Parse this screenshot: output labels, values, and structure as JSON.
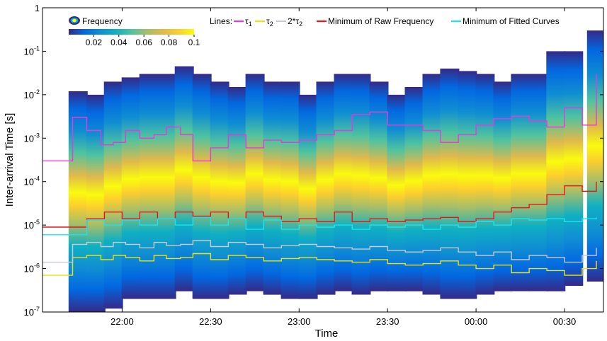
{
  "chart_data": {
    "type": "heatmap",
    "title": "",
    "xlabel": "Time",
    "ylabel": "Inter-arrival Time [s]",
    "x_ticks": [
      "22:00",
      "22:30",
      "23:00",
      "23:30",
      "00:00",
      "00:30"
    ],
    "x_tick_hours": [
      22.0,
      22.5,
      23.0,
      23.5,
      24.0,
      24.5
    ],
    "xlim_hours": [
      21.55,
      24.72
    ],
    "y_scale": "log",
    "ylim": [
      1e-07,
      1
    ],
    "y_ticks": [
      {
        "value": 1,
        "base": "1",
        "exp": ""
      },
      {
        "value": 0.1,
        "base": "10",
        "exp": "-1"
      },
      {
        "value": 0.01,
        "base": "10",
        "exp": "-2"
      },
      {
        "value": 0.001,
        "base": "10",
        "exp": "-3"
      },
      {
        "value": 0.0001,
        "base": "10",
        "exp": "-4"
      },
      {
        "value": 1e-05,
        "base": "10",
        "exp": "-5"
      },
      {
        "value": 1e-06,
        "base": "10",
        "exp": "-6"
      },
      {
        "value": 1e-07,
        "base": "10",
        "exp": "-7"
      }
    ],
    "colorbar": {
      "label": "Frequency",
      "range": [
        0,
        0.1
      ],
      "ticks": [
        "0.02",
        "0.04",
        "0.06",
        "0.08",
        "0.1"
      ],
      "tick_values": [
        0.02,
        0.04,
        0.06,
        0.08,
        0.1
      ],
      "colormap": [
        "#352a87",
        "#0268e1",
        "#108ed2",
        "#0fb0c2",
        "#4fc3a0",
        "#a5be6a",
        "#e0b94b",
        "#fcce2e",
        "#f9fb0e"
      ]
    },
    "legend": {
      "prefix": "Lines:",
      "position": "top-right",
      "entries": [
        {
          "name": "τ1",
          "color": "#e63ad9"
        },
        {
          "name": "τ2",
          "color": "#e8e414"
        },
        {
          "name": "2*τ2",
          "color": "#c8c8d0"
        },
        {
          "name": "Minimum of Raw Frequency",
          "color": "#e8161b"
        },
        {
          "name": "Minimum of Fitted Curves",
          "color": "#1ee3ee"
        }
      ]
    },
    "density_envelope": {
      "x_hours": [
        21.75,
        21.85,
        21.95,
        22.05,
        22.15,
        22.25,
        22.35,
        22.45,
        22.55,
        22.65,
        22.75,
        22.85,
        22.95,
        23.05,
        23.15,
        23.25,
        23.35,
        23.45,
        23.55,
        23.65,
        23.75,
        23.85,
        23.95,
        24.05,
        24.15,
        24.25,
        24.35,
        24.45,
        24.55,
        24.68
      ],
      "upper_s": [
        0.012,
        0.01,
        0.02,
        0.025,
        0.03,
        0.03,
        0.045,
        0.03,
        0.02,
        0.015,
        0.03,
        0.02,
        0.02,
        0.01,
        0.02,
        0.03,
        0.03,
        0.02,
        0.01,
        0.015,
        0.03,
        0.04,
        0.035,
        0.03,
        0.02,
        0.03,
        0.03,
        0.1,
        0.1,
        0.3
      ],
      "lower_s": [
        1e-07,
        1e-07,
        1.2e-07,
        2e-07,
        2e-07,
        2e-07,
        3e-07,
        2e-07,
        2e-07,
        2.5e-07,
        3e-07,
        2.5e-07,
        2e-07,
        2e-07,
        2.5e-07,
        3e-07,
        2.5e-07,
        3e-07,
        3e-07,
        3e-07,
        2.5e-07,
        2e-07,
        2e-07,
        2.5e-07,
        3e-07,
        3e-07,
        3e-07,
        3e-07,
        4e-07,
        5e-07
      ]
    },
    "series": [
      {
        "name": "τ1",
        "color": "#e63ad9",
        "style": "step",
        "x_hours": [
          21.55,
          21.62,
          21.72,
          21.8,
          21.88,
          21.95,
          22.02,
          22.1,
          22.18,
          22.25,
          22.33,
          22.4,
          22.5,
          22.6,
          22.7,
          22.8,
          22.9,
          23.0,
          23.1,
          23.2,
          23.3,
          23.4,
          23.5,
          23.6,
          23.7,
          23.8,
          23.9,
          24.0,
          24.1,
          24.2,
          24.3,
          24.4,
          24.5,
          24.6,
          24.68
        ],
        "y_s": [
          0.0003,
          0.0003,
          0.003,
          0.0015,
          0.0007,
          0.0008,
          0.0015,
          0.001,
          0.0012,
          0.0018,
          0.0012,
          0.0003,
          0.0006,
          0.0012,
          0.0006,
          0.0009,
          0.0008,
          0.0009,
          0.0012,
          0.0015,
          0.0035,
          0.004,
          0.002,
          0.002,
          0.0015,
          0.0008,
          0.0012,
          0.002,
          0.0028,
          0.0032,
          0.0025,
          0.0018,
          0.005,
          0.002,
          0.03
        ]
      },
      {
        "name": "τ2",
        "color": "#e8e414",
        "style": "step",
        "x_hours": [
          21.55,
          21.62,
          21.72,
          21.8,
          21.88,
          21.95,
          22.02,
          22.1,
          22.18,
          22.25,
          22.33,
          22.4,
          22.5,
          22.6,
          22.7,
          22.8,
          22.9,
          23.0,
          23.1,
          23.2,
          23.3,
          23.4,
          23.5,
          23.6,
          23.7,
          23.8,
          23.9,
          24.0,
          24.1,
          24.2,
          24.3,
          24.4,
          24.5,
          24.6,
          24.68
        ],
        "y_s": [
          7e-07,
          7e-07,
          1.8e-06,
          2e-06,
          1.6e-06,
          2e-06,
          1.8e-06,
          1.5e-06,
          2e-06,
          1.7e-06,
          1.8e-06,
          2.2e-06,
          1.6e-06,
          2e-06,
          1.8e-06,
          1.5e-06,
          1.7e-06,
          1.8e-06,
          1.6e-06,
          1.5e-06,
          1.4e-06,
          1.6e-06,
          1.3e-06,
          1.2e-06,
          1.3e-06,
          1.5e-06,
          1.2e-06,
          1e-06,
          1.2e-06,
          8e-07,
          1e-06,
          9e-07,
          7e-07,
          1e-06,
          1.5e-06
        ]
      },
      {
        "name": "2*τ2",
        "color": "#c8c8d0",
        "style": "step",
        "x_hours": [
          21.55,
          21.62,
          21.72,
          21.8,
          21.88,
          21.95,
          22.02,
          22.1,
          22.18,
          22.25,
          22.33,
          22.4,
          22.5,
          22.6,
          22.7,
          22.8,
          22.9,
          23.0,
          23.1,
          23.2,
          23.3,
          23.4,
          23.5,
          23.6,
          23.7,
          23.8,
          23.9,
          24.0,
          24.1,
          24.2,
          24.3,
          24.4,
          24.5,
          24.6,
          24.68
        ],
        "y_s": [
          1.4e-06,
          1.4e-06,
          3.6e-06,
          4e-06,
          3.2e-06,
          4e-06,
          3.6e-06,
          3e-06,
          4e-06,
          3.4e-06,
          3.6e-06,
          4.4e-06,
          3.2e-06,
          4e-06,
          3.6e-06,
          3e-06,
          3.4e-06,
          3.6e-06,
          3.2e-06,
          3e-06,
          2.8e-06,
          3.2e-06,
          2.6e-06,
          2.4e-06,
          2.6e-06,
          3e-06,
          2.4e-06,
          2e-06,
          2.4e-06,
          1.6e-06,
          2e-06,
          1.8e-06,
          1.4e-06,
          2e-06,
          3e-06
        ]
      },
      {
        "name": "Minimum of Raw Frequency",
        "color": "#e8161b",
        "style": "step",
        "x_hours": [
          21.55,
          21.72,
          21.8,
          21.9,
          22.0,
          22.1,
          22.2,
          22.3,
          22.4,
          22.5,
          22.6,
          22.7,
          22.8,
          22.9,
          23.0,
          23.1,
          23.2,
          23.3,
          23.4,
          23.5,
          23.6,
          23.7,
          23.8,
          23.9,
          24.0,
          24.1,
          24.2,
          24.3,
          24.4,
          24.5,
          24.6,
          24.68
        ],
        "y_s": [
          9e-06,
          9e-06,
          1.4e-05,
          2e-05,
          1.4e-05,
          2e-05,
          1.4e-05,
          2e-05,
          1.6e-05,
          2e-05,
          1.4e-05,
          2e-05,
          1.6e-05,
          1.2e-05,
          1.4e-05,
          1.2e-05,
          2e-05,
          1.2e-05,
          1.4e-05,
          1.2e-05,
          1.3e-05,
          1.4e-05,
          1.5e-05,
          1.2e-05,
          1.4e-05,
          2e-05,
          2.5e-05,
          3e-05,
          5e-05,
          8e-05,
          6e-05,
          0.0001
        ]
      },
      {
        "name": "Minimum of Fitted Curves",
        "color": "#1ee3ee",
        "style": "step",
        "x_hours": [
          21.55,
          21.72,
          21.8,
          21.9,
          22.0,
          22.1,
          22.2,
          22.3,
          22.4,
          22.5,
          22.6,
          22.7,
          22.8,
          22.9,
          23.0,
          23.1,
          23.2,
          23.3,
          23.4,
          23.5,
          23.6,
          23.7,
          23.8,
          23.9,
          24.0,
          24.1,
          24.2,
          24.3,
          24.4,
          24.5,
          24.6,
          24.68
        ],
        "y_s": [
          6e-06,
          6e-06,
          1.3e-05,
          1e-05,
          1.3e-05,
          1e-05,
          1.4e-05,
          1e-05,
          1.5e-05,
          1e-05,
          1.4e-05,
          8e-06,
          1.3e-05,
          8e-06,
          1e-05,
          9e-06,
          1e-05,
          8e-06,
          1e-05,
          9e-06,
          1e-05,
          8e-06,
          1e-05,
          9e-06,
          1.2e-05,
          1e-05,
          1.4e-05,
          1.3e-05,
          1.4e-05,
          1.2e-05,
          1.4e-05,
          1.5e-05
        ]
      }
    ]
  }
}
